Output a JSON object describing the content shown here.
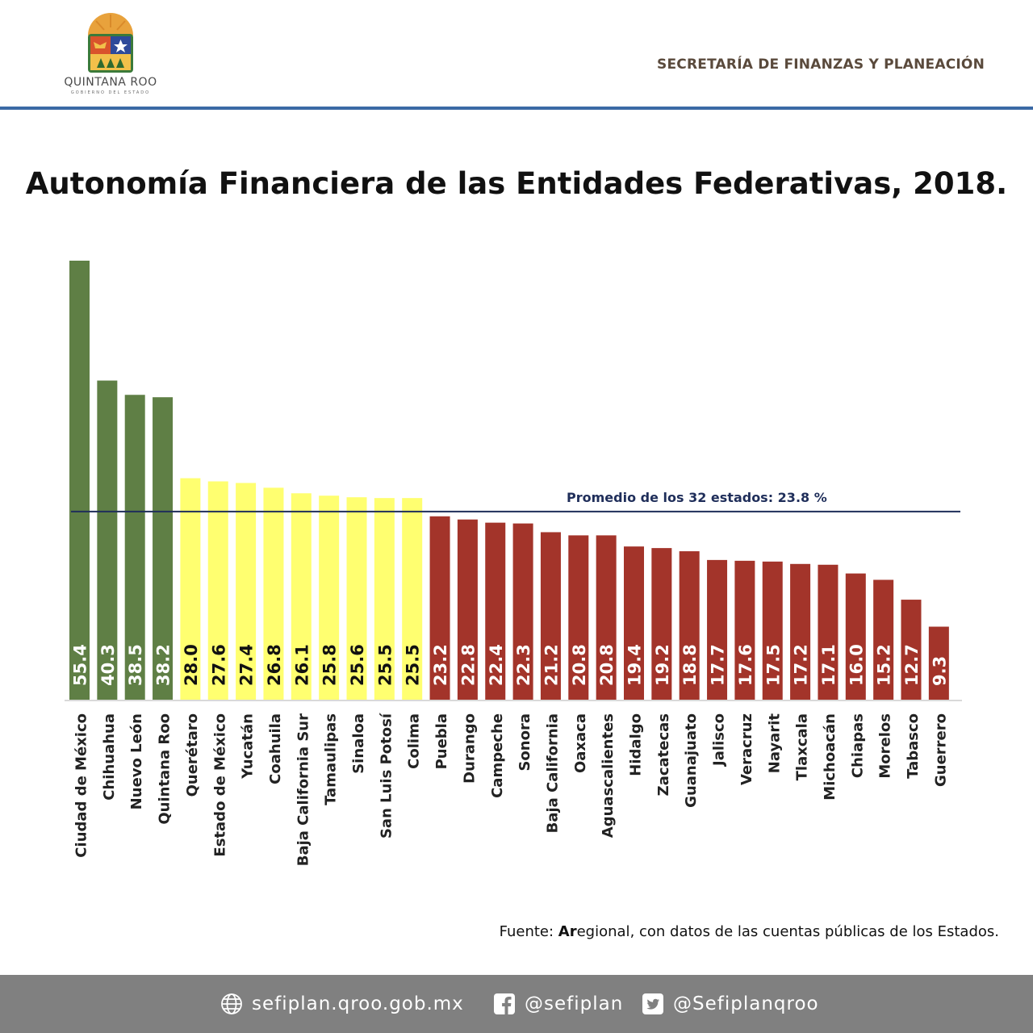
{
  "header": {
    "logo_name": "QUINTANA ROO",
    "logo_sub": "GOBIERNO DEL ESTADO",
    "agency": "SECRETARÍA DE FINANZAS Y PLANEACIÓN"
  },
  "title": "Autonomía Financiera de las Entidades Federativas, 2018.",
  "chart_data": {
    "type": "bar",
    "title": "Autonomía Financiera de las Entidades Federativas, 2018.",
    "categories": [
      "Ciudad de México",
      "Chihuahua",
      "Nuevo León",
      "Quintana Roo",
      "Querétaro",
      "Estado de México",
      "Yucatán",
      "Coahuila",
      "Baja California Sur",
      "Tamaulipas",
      "Sinaloa",
      "San Luis Potosí",
      "Colima",
      "Puebla",
      "Durango",
      "Campeche",
      "Sonora",
      "Baja California",
      "Oaxaca",
      "Aguascalientes",
      "Hidalgo",
      "Zacatecas",
      "Guanajuato",
      "Jalisco",
      "Veracruz",
      "Nayarit",
      "Tlaxcala",
      "Michoacán",
      "Chiapas",
      "Morelos",
      "Tabasco",
      "Guerrero"
    ],
    "values": [
      55.4,
      40.3,
      38.5,
      38.2,
      28.0,
      27.6,
      27.4,
      26.8,
      26.1,
      25.8,
      25.6,
      25.5,
      25.5,
      23.2,
      22.8,
      22.4,
      22.3,
      21.2,
      20.8,
      20.8,
      19.4,
      19.2,
      18.8,
      17.7,
      17.6,
      17.5,
      17.2,
      17.1,
      16.0,
      15.2,
      12.7,
      9.3
    ],
    "value_labels": [
      "55.4",
      "40.3",
      "38.5",
      "38.2",
      "28.0",
      "27.6",
      "27.4",
      "26.8",
      "26.1",
      "25.8",
      "25.6",
      "25.5",
      "25.5",
      "23.2",
      "22.8",
      "22.4",
      "22.3",
      "21.2",
      "20.8",
      "20.8",
      "19.4",
      "19.2",
      "18.8",
      "17.7",
      "17.6",
      "17.5",
      "17.2",
      "17.1",
      "16.0",
      "15.2",
      "12.7",
      "9.3"
    ],
    "colors": [
      "#5f7f45",
      "#5f7f45",
      "#5f7f45",
      "#5f7f45",
      "#ffff70",
      "#ffff70",
      "#ffff70",
      "#ffff70",
      "#ffff70",
      "#ffff70",
      "#ffff70",
      "#ffff70",
      "#ffff70",
      "#a3342a",
      "#a3342a",
      "#a3342a",
      "#a3342a",
      "#a3342a",
      "#a3342a",
      "#a3342a",
      "#a3342a",
      "#a3342a",
      "#a3342a",
      "#a3342a",
      "#a3342a",
      "#a3342a",
      "#a3342a",
      "#a3342a",
      "#a3342a",
      "#a3342a",
      "#a3342a",
      "#a3342a"
    ],
    "label_colors": [
      "#ffffff",
      "#ffffff",
      "#ffffff",
      "#ffffff",
      "#111111",
      "#111111",
      "#111111",
      "#111111",
      "#111111",
      "#111111",
      "#111111",
      "#111111",
      "#111111",
      "#ffffff",
      "#ffffff",
      "#ffffff",
      "#ffffff",
      "#ffffff",
      "#ffffff",
      "#ffffff",
      "#ffffff",
      "#ffffff",
      "#ffffff",
      "#ffffff",
      "#ffffff",
      "#ffffff",
      "#ffffff",
      "#ffffff",
      "#ffffff",
      "#ffffff",
      "#ffffff",
      "#ffffff"
    ],
    "average": {
      "value": 23.8,
      "label": "Promedio de los 32 estados: 23.8 %",
      "color": "#1f2e5a"
    },
    "ylim": [
      0,
      55.4
    ],
    "grid": false,
    "xlabel": "",
    "ylabel": ""
  },
  "source": {
    "prefix": "Fuente: ",
    "bold": "Ar",
    "rest": "egional, con datos de las cuentas públicas de los Estados."
  },
  "footer": {
    "web": "sefiplan.qroo.gob.mx",
    "facebook": "@sefiplan",
    "twitter": "@Sefiplanqroo"
  }
}
